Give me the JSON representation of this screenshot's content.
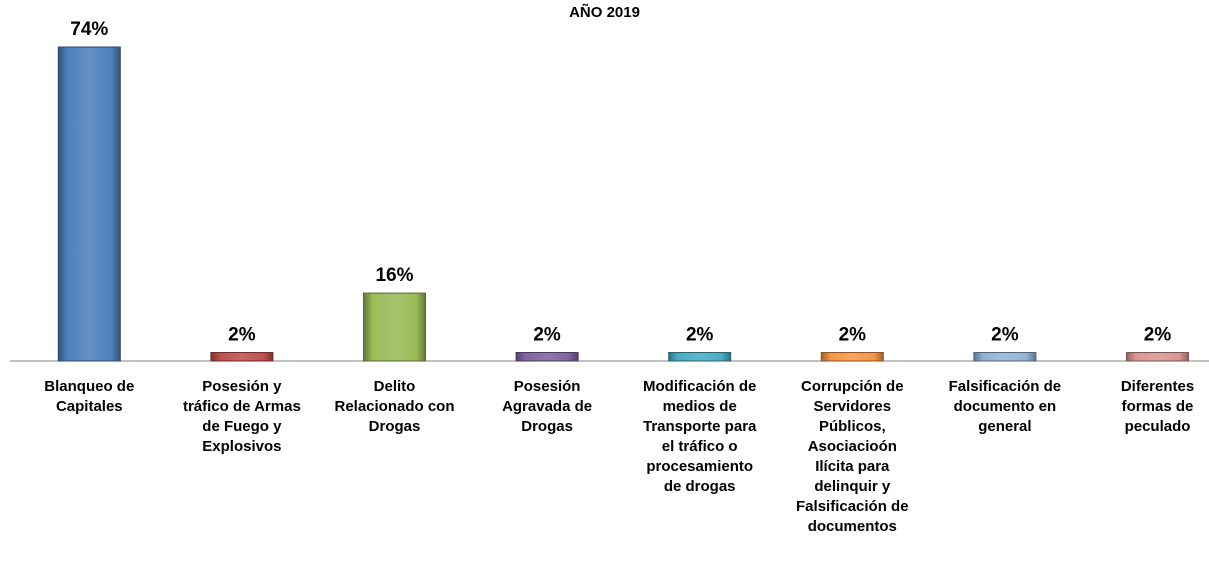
{
  "chart_data": {
    "type": "bar",
    "title": "AÑO 2019",
    "xlabel": "",
    "ylabel": "",
    "ylim": [
      0,
      74
    ],
    "grid": false,
    "legend": "none",
    "categories": [
      "Blanqueo de\nCapitales",
      "Posesión y\ntráfico de Armas\nde Fuego y\nExplosivos",
      "Delito\nRelacionado con\nDrogas",
      "Posesión\nAgravada de\nDrogas",
      "Modificación de\nmedios de\nTransporte para\nel tráfico o\nprocesamiento\nde drogas",
      "Corrupción de\nServidores\nPúblicos,\nAsociacioón\nIlícita para\ndelinquir y\nFalsificación de\ndocumentos",
      "Falsificación de\ndocumento en\ngeneral",
      "Diferentes\nformas de\npeculado"
    ],
    "values": [
      74,
      2,
      16,
      2,
      2,
      2,
      2,
      2
    ],
    "data_labels": [
      "74%",
      "2%",
      "16%",
      "2%",
      "2%",
      "2%",
      "2%",
      "2%"
    ],
    "colors": [
      "#4f81bd",
      "#c0504d",
      "#9bbb59",
      "#8064a2",
      "#4bacc6",
      "#f79646",
      "#95b3d7",
      "#d99694"
    ]
  }
}
